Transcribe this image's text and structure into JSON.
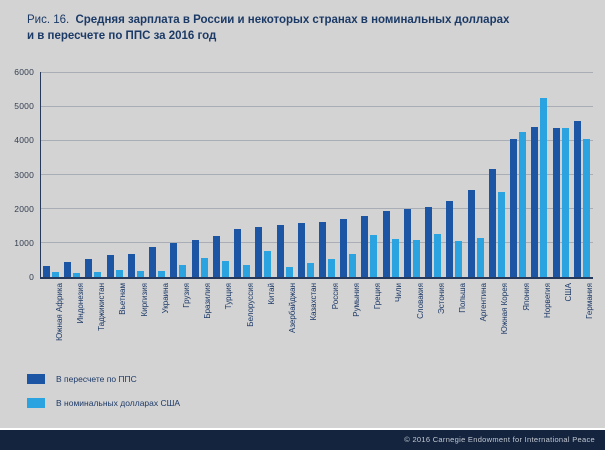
{
  "figure": {
    "label": "Рис. 16.",
    "title_line1": "Средняя зарплата в России и некоторых странах в номинальных долларах",
    "title_line2": "и в пересчете по ППС за 2016 год"
  },
  "chart_data": {
    "type": "bar",
    "title": "Средняя зарплата в России и некоторых странах в номинальных долларах и в пересчете по ППС за 2016 год",
    "categories": [
      "Южная Африка",
      "Индонезия",
      "Таджикистан",
      "Вьетнам",
      "Киргизия",
      "Украина",
      "Грузия",
      "Бразилия",
      "Турция",
      "Белоруссия",
      "Китай",
      "Азербайджан",
      "Казахстан",
      "Россия",
      "Румыния",
      "Греция",
      "Чили",
      "Словакия",
      "Эстония",
      "Польша",
      "Аргентина",
      "Южная Корея",
      "Япония",
      "Норвегия",
      "США",
      "Германия"
    ],
    "series": [
      {
        "name": "В пересчете по ППС",
        "color": "#1c55a4",
        "values": [
          320,
          430,
          530,
          640,
          680,
          880,
          1000,
          1080,
          1190,
          1410,
          1450,
          1530,
          1590,
          1620,
          1690,
          1780,
          1930,
          2000,
          2050,
          2220,
          2560,
          3160,
          4040,
          4380,
          4360,
          4570
        ]
      },
      {
        "name": "В номинальных долларах США",
        "color": "#2aa3e0",
        "values": [
          140,
          130,
          140,
          210,
          170,
          180,
          360,
          570,
          470,
          360,
          750,
          280,
          420,
          530,
          680,
          1220,
          1120,
          1090,
          1270,
          1050,
          1150,
          2500,
          4240,
          5250,
          4360,
          4040
        ]
      }
    ],
    "xlabel": "",
    "ylabel": "",
    "ylim": [
      0,
      6000
    ],
    "yticks": [
      0,
      1000,
      2000,
      3000,
      4000,
      5000,
      6000
    ],
    "grid": true,
    "legend_position": "bottom-left"
  },
  "footer": {
    "copyright": "© 2016 Carnegie Endowment for International Peace"
  },
  "colors": {
    "background": "#d3d3d4",
    "bar_ppp": "#1c55a4",
    "bar_nominal": "#2aa3e0",
    "footer_bar": "#14243e",
    "title_text": "#1b3a66",
    "gridline": "#a8adb6"
  }
}
